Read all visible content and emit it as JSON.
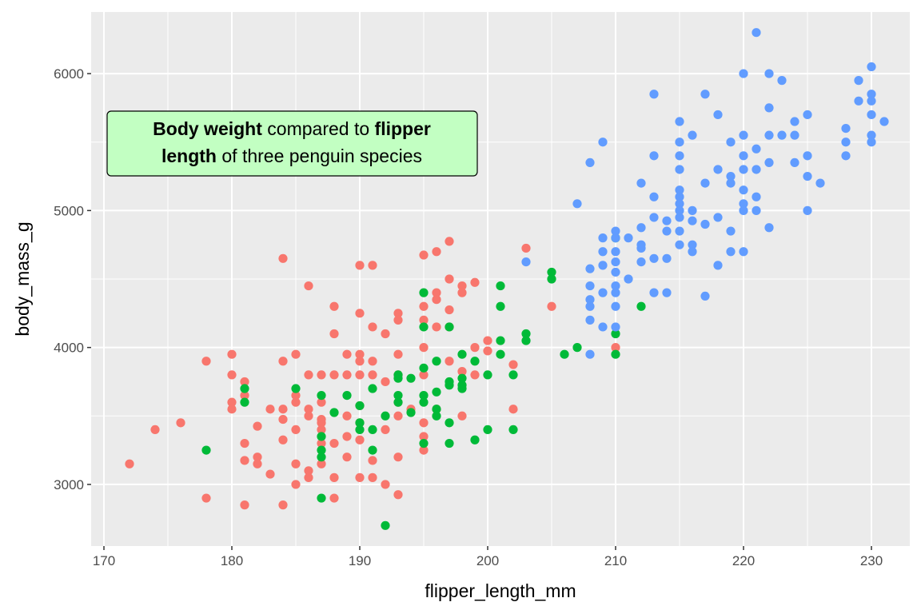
{
  "chart_data": {
    "type": "scatter",
    "xlabel": "flipper_length_mm",
    "ylabel": "body_mass_g",
    "xlim": [
      169,
      233
    ],
    "ylim": [
      2550,
      6450
    ],
    "x_ticks": [
      170,
      180,
      190,
      200,
      210,
      220,
      230
    ],
    "x_minor_ticks": [
      175,
      185,
      195,
      205,
      215,
      225
    ],
    "y_ticks": [
      3000,
      4000,
      5000,
      6000
    ],
    "y_minor_ticks": [
      3500,
      4500,
      5500
    ],
    "x_tick_labels": [
      "170",
      "180",
      "190",
      "200",
      "210",
      "220",
      "230"
    ],
    "y_tick_labels": [
      "3000",
      "4000",
      "5000",
      "6000"
    ],
    "grid": true,
    "legend": "none",
    "annotation": {
      "line1_bold_a": "Body weight",
      "line1_normal": " compared to ",
      "line1_bold_b": "flipper",
      "line2_bold": "length",
      "line2_normal": " of three penguin species",
      "fill": "#c2ffc2"
    },
    "series": [
      {
        "color": "#f8766d",
        "points": [
          [
            172,
            3150
          ],
          [
            174,
            3400
          ],
          [
            176,
            3450
          ],
          [
            178,
            3900
          ],
          [
            178,
            2900
          ],
          [
            180,
            3950
          ],
          [
            180,
            3800
          ],
          [
            180,
            3600
          ],
          [
            180,
            3550
          ],
          [
            181,
            3750
          ],
          [
            181,
            3650
          ],
          [
            181,
            3300
          ],
          [
            181,
            3175
          ],
          [
            181,
            2850
          ],
          [
            182,
            3425
          ],
          [
            182,
            3200
          ],
          [
            182,
            3150
          ],
          [
            183,
            3550
          ],
          [
            183,
            3075
          ],
          [
            184,
            4650
          ],
          [
            184,
            3900
          ],
          [
            184,
            3550
          ],
          [
            184,
            3475
          ],
          [
            184,
            3325
          ],
          [
            184,
            2850
          ],
          [
            185,
            3950
          ],
          [
            185,
            3650
          ],
          [
            185,
            3600
          ],
          [
            185,
            3400
          ],
          [
            185,
            3150
          ],
          [
            185,
            3000
          ],
          [
            186,
            4450
          ],
          [
            186,
            3800
          ],
          [
            186,
            3550
          ],
          [
            186,
            3500
          ],
          [
            186,
            3100
          ],
          [
            186,
            3050
          ],
          [
            187,
            3800
          ],
          [
            187,
            3600
          ],
          [
            187,
            3475
          ],
          [
            187,
            3450
          ],
          [
            187,
            3400
          ],
          [
            187,
            3300
          ],
          [
            187,
            3150
          ],
          [
            188,
            4300
          ],
          [
            188,
            4100
          ],
          [
            188,
            3800
          ],
          [
            188,
            3300
          ],
          [
            188,
            3050
          ],
          [
            188,
            2900
          ],
          [
            189,
            3950
          ],
          [
            189,
            3800
          ],
          [
            189,
            3500
          ],
          [
            189,
            3350
          ],
          [
            189,
            3200
          ],
          [
            190,
            4600
          ],
          [
            190,
            4250
          ],
          [
            190,
            3950
          ],
          [
            190,
            3900
          ],
          [
            190,
            3800
          ],
          [
            190,
            3575
          ],
          [
            190,
            3450
          ],
          [
            190,
            3325
          ],
          [
            190,
            3050
          ],
          [
            191,
            4600
          ],
          [
            191,
            4150
          ],
          [
            191,
            3900
          ],
          [
            191,
            3800
          ],
          [
            191,
            3175
          ],
          [
            191,
            3050
          ],
          [
            192,
            4100
          ],
          [
            192,
            3750
          ],
          [
            192,
            3400
          ],
          [
            192,
            3000
          ],
          [
            193,
            4250
          ],
          [
            193,
            4200
          ],
          [
            193,
            3950
          ],
          [
            193,
            3800
          ],
          [
            193,
            3600
          ],
          [
            193,
            3500
          ],
          [
            193,
            3200
          ],
          [
            193,
            2925
          ],
          [
            194,
            3550
          ],
          [
            195,
            4675
          ],
          [
            195,
            4300
          ],
          [
            195,
            4200
          ],
          [
            195,
            4000
          ],
          [
            195,
            3800
          ],
          [
            195,
            3450
          ],
          [
            195,
            3350
          ],
          [
            195,
            3250
          ],
          [
            196,
            4700
          ],
          [
            196,
            4400
          ],
          [
            196,
            4350
          ],
          [
            196,
            4150
          ],
          [
            196,
            3550
          ],
          [
            197,
            4775
          ],
          [
            197,
            4500
          ],
          [
            197,
            4275
          ],
          [
            197,
            4150
          ],
          [
            197,
            3900
          ],
          [
            198,
            4450
          ],
          [
            198,
            4400
          ],
          [
            198,
            3825
          ],
          [
            198,
            3500
          ],
          [
            199,
            4475
          ],
          [
            199,
            4000
          ],
          [
            199,
            3800
          ],
          [
            200,
            4050
          ],
          [
            200,
            3975
          ],
          [
            202,
            3875
          ],
          [
            202,
            3550
          ],
          [
            203,
            4725
          ],
          [
            205,
            4300
          ],
          [
            210,
            4000
          ]
        ]
      },
      {
        "color": "#00ba38",
        "points": [
          [
            178,
            3250
          ],
          [
            181,
            3700
          ],
          [
            181,
            3600
          ],
          [
            185,
            3700
          ],
          [
            187,
            3650
          ],
          [
            187,
            3350
          ],
          [
            187,
            3250
          ],
          [
            187,
            3200
          ],
          [
            187,
            2900
          ],
          [
            188,
            3525
          ],
          [
            189,
            3650
          ],
          [
            190,
            3575
          ],
          [
            190,
            3450
          ],
          [
            190,
            3400
          ],
          [
            191,
            3700
          ],
          [
            191,
            3400
          ],
          [
            191,
            3250
          ],
          [
            192,
            3500
          ],
          [
            192,
            2700
          ],
          [
            193,
            3800
          ],
          [
            193,
            3775
          ],
          [
            193,
            3650
          ],
          [
            193,
            3600
          ],
          [
            194,
            3775
          ],
          [
            194,
            3525
          ],
          [
            195,
            4400
          ],
          [
            195,
            4150
          ],
          [
            195,
            3850
          ],
          [
            195,
            3650
          ],
          [
            195,
            3600
          ],
          [
            195,
            3300
          ],
          [
            196,
            3900
          ],
          [
            196,
            3675
          ],
          [
            196,
            3550
          ],
          [
            196,
            3500
          ],
          [
            197,
            4150
          ],
          [
            197,
            3750
          ],
          [
            197,
            3725
          ],
          [
            197,
            3450
          ],
          [
            197,
            3300
          ],
          [
            198,
            3950
          ],
          [
            198,
            3775
          ],
          [
            198,
            3725
          ],
          [
            198,
            3700
          ],
          [
            199,
            3900
          ],
          [
            199,
            3325
          ],
          [
            200,
            3800
          ],
          [
            200,
            3400
          ],
          [
            201,
            4450
          ],
          [
            201,
            4300
          ],
          [
            201,
            4050
          ],
          [
            201,
            3950
          ],
          [
            202,
            3800
          ],
          [
            202,
            3400
          ],
          [
            203,
            4100
          ],
          [
            203,
            4050
          ],
          [
            205,
            4550
          ],
          [
            205,
            4500
          ],
          [
            206,
            3950
          ],
          [
            207,
            4000
          ],
          [
            210,
            4800
          ],
          [
            210,
            4100
          ],
          [
            210,
            3950
          ],
          [
            212,
            4300
          ]
        ]
      },
      {
        "color": "#619cff",
        "points": [
          [
            203,
            4625
          ],
          [
            207,
            5050
          ],
          [
            208,
            5350
          ],
          [
            208,
            4575
          ],
          [
            208,
            4450
          ],
          [
            208,
            4350
          ],
          [
            208,
            4300
          ],
          [
            208,
            4200
          ],
          [
            208,
            3950
          ],
          [
            209,
            5500
          ],
          [
            209,
            4800
          ],
          [
            209,
            4700
          ],
          [
            209,
            4600
          ],
          [
            209,
            4400
          ],
          [
            209,
            4150
          ],
          [
            210,
            4850
          ],
          [
            210,
            4800
          ],
          [
            210,
            4700
          ],
          [
            210,
            4625
          ],
          [
            210,
            4550
          ],
          [
            210,
            4450
          ],
          [
            210,
            4400
          ],
          [
            210,
            4300
          ],
          [
            210,
            4150
          ],
          [
            211,
            4800
          ],
          [
            211,
            4500
          ],
          [
            212,
            5200
          ],
          [
            212,
            4875
          ],
          [
            212,
            4750
          ],
          [
            212,
            4725
          ],
          [
            212,
            4625
          ],
          [
            213,
            5850
          ],
          [
            213,
            5400
          ],
          [
            213,
            5100
          ],
          [
            213,
            4950
          ],
          [
            213,
            4650
          ],
          [
            213,
            4400
          ],
          [
            214,
            4925
          ],
          [
            214,
            4850
          ],
          [
            214,
            4650
          ],
          [
            214,
            4400
          ],
          [
            215,
            5650
          ],
          [
            215,
            5500
          ],
          [
            215,
            5400
          ],
          [
            215,
            5300
          ],
          [
            215,
            5150
          ],
          [
            215,
            5100
          ],
          [
            215,
            5050
          ],
          [
            215,
            5000
          ],
          [
            215,
            4950
          ],
          [
            215,
            4850
          ],
          [
            215,
            4750
          ],
          [
            216,
            5550
          ],
          [
            216,
            5000
          ],
          [
            216,
            4925
          ],
          [
            216,
            4750
          ],
          [
            216,
            4700
          ],
          [
            217,
            5850
          ],
          [
            217,
            5200
          ],
          [
            217,
            4900
          ],
          [
            217,
            4375
          ],
          [
            218,
            5700
          ],
          [
            218,
            5300
          ],
          [
            218,
            4950
          ],
          [
            218,
            4600
          ],
          [
            219,
            5500
          ],
          [
            219,
            5250
          ],
          [
            219,
            5200
          ],
          [
            219,
            4850
          ],
          [
            219,
            4700
          ],
          [
            220,
            6000
          ],
          [
            220,
            5550
          ],
          [
            220,
            5400
          ],
          [
            220,
            5300
          ],
          [
            220,
            5150
          ],
          [
            220,
            5050
          ],
          [
            220,
            5000
          ],
          [
            220,
            4700
          ],
          [
            221,
            6300
          ],
          [
            221,
            5450
          ],
          [
            221,
            5300
          ],
          [
            221,
            5100
          ],
          [
            221,
            5000
          ],
          [
            222,
            6000
          ],
          [
            222,
            5750
          ],
          [
            222,
            5550
          ],
          [
            222,
            5350
          ],
          [
            222,
            4875
          ],
          [
            223,
            5950
          ],
          [
            223,
            5550
          ],
          [
            224,
            5650
          ],
          [
            224,
            5550
          ],
          [
            224,
            5350
          ],
          [
            225,
            5700
          ],
          [
            225,
            5400
          ],
          [
            225,
            5250
          ],
          [
            225,
            5000
          ],
          [
            226,
            5200
          ],
          [
            228,
            5600
          ],
          [
            228,
            5500
          ],
          [
            228,
            5400
          ],
          [
            229,
            5950
          ],
          [
            229,
            5800
          ],
          [
            230,
            6050
          ],
          [
            230,
            5850
          ],
          [
            230,
            5800
          ],
          [
            230,
            5700
          ],
          [
            230,
            5550
          ],
          [
            230,
            5500
          ],
          [
            231,
            5650
          ]
        ]
      }
    ]
  }
}
